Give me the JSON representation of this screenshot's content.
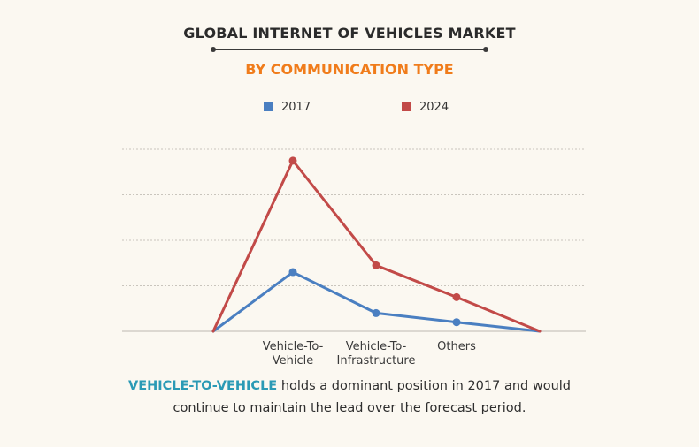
{
  "header": {
    "title": "GLOBAL INTERNET OF VEHICLES MARKET",
    "subtitle": "BY COMMUNICATION TYPE"
  },
  "colors": {
    "series_2017": "#4a7fc1",
    "series_2024": "#c24a48",
    "subtitle": "#f07c1b",
    "highlight": "#2b9ab5"
  },
  "chart_data": {
    "type": "line",
    "categories": [
      "",
      "Vehicle-To-Vehicle",
      "Vehicle-To-Infrastructure",
      "Others",
      ""
    ],
    "category_lines": [
      [
        "Vehicle-To-",
        "Vehicle"
      ],
      [
        "Vehicle-To-",
        "Infrastructure"
      ],
      [
        "Others"
      ]
    ],
    "series": [
      {
        "name": "2017",
        "values": [
          0,
          13,
          4,
          2,
          0
        ]
      },
      {
        "name": "2024",
        "values": [
          0,
          37.5,
          14.5,
          7.5,
          0
        ]
      }
    ],
    "ylim": [
      0,
      40
    ],
    "grid": true,
    "legend": "top-center",
    "title": "GLOBAL INTERNET OF VEHICLES MARKET",
    "subtitle": "BY COMMUNICATION TYPE",
    "xlabel": "",
    "ylabel": ""
  },
  "caption": {
    "highlight": "VEHICLE-TO-VEHICLE",
    "line1_rest": " holds a dominant position in 2017 and would",
    "line2": "continue to maintain the lead over the forecast period."
  }
}
